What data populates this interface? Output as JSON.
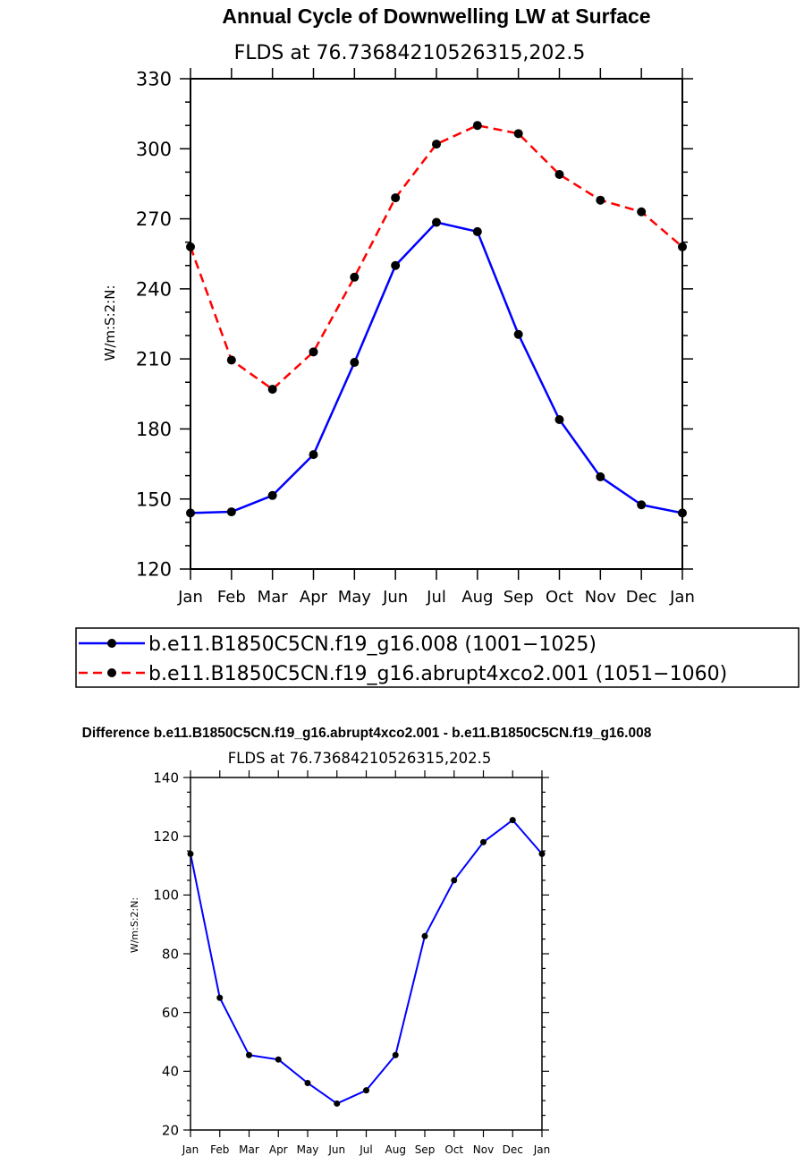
{
  "chart_data": [
    {
      "type": "line",
      "title": "Annual Cycle of Downwelling LW at Surface",
      "subtitle": "FLDS at 76.73684210526315,202.5",
      "ylabel": "W/m:S:2:N:",
      "xlabel": "",
      "ylim": [
        120,
        330
      ],
      "yticks": [
        120,
        150,
        180,
        210,
        240,
        270,
        300,
        330
      ],
      "categories": [
        "Jan",
        "Feb",
        "Mar",
        "Apr",
        "May",
        "Jun",
        "Jul",
        "Aug",
        "Sep",
        "Oct",
        "Nov",
        "Dec",
        "Jan"
      ],
      "legend_position": "below",
      "series": [
        {
          "name": "b.e11.B1850C5CN.f19_g16.008 (1001−1025)",
          "color": "#0000ff",
          "dash": "solid",
          "values": [
            144,
            144.5,
            151.5,
            169,
            208.5,
            250,
            268.5,
            264.5,
            220.5,
            184,
            159.5,
            147.5,
            144
          ]
        },
        {
          "name": "b.e11.B1850C5CN.f19_g16.abrupt4xco2.001 (1051−1060)",
          "color": "#ff0000",
          "dash": "dashed",
          "values": [
            258,
            209.5,
            197,
            213,
            245,
            279,
            302,
            310,
            306.5,
            289,
            278,
            273,
            258
          ]
        }
      ]
    },
    {
      "type": "line",
      "title": "Difference b.e11.B1850C5CN.f19_g16.abrupt4xco2.001 - b.e11.B1850C5CN.f19_g16.008",
      "subtitle": "FLDS at 76.73684210526315,202.5",
      "ylabel": "W/m:S:2:N:",
      "xlabel": "",
      "ylim": [
        20,
        140
      ],
      "yticks": [
        20,
        40,
        60,
        80,
        100,
        120,
        140
      ],
      "categories": [
        "Jan",
        "Feb",
        "Mar",
        "Apr",
        "May",
        "Jun",
        "Jul",
        "Aug",
        "Sep",
        "Oct",
        "Nov",
        "Dec",
        "Jan"
      ],
      "series": [
        {
          "color": "#0000ff",
          "dash": "solid",
          "values": [
            114,
            65,
            45.5,
            44,
            36,
            29,
            33.5,
            45.5,
            86,
            105,
            118,
            125.5,
            114
          ]
        }
      ]
    }
  ]
}
